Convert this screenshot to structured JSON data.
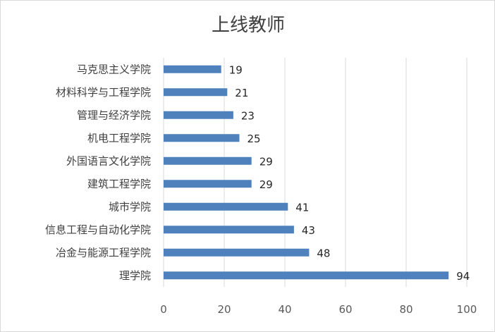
{
  "chart_data": {
    "type": "bar",
    "orientation": "horizontal",
    "title": "上线教师",
    "xlabel": "",
    "ylabel": "",
    "categories": [
      "马克思主义学院",
      "材料科学与工程学院",
      "管理与经济学院",
      "机电工程学院",
      "外国语言文化学院",
      "建筑工程学院",
      "城市学院",
      "信息工程与自动化学院",
      "冶金与能源工程学院",
      "理学院"
    ],
    "values": [
      19,
      21,
      23,
      25,
      29,
      29,
      41,
      43,
      48,
      94
    ],
    "xlim": [
      0,
      100
    ],
    "xticks": [
      0,
      20,
      40,
      60,
      80,
      100
    ],
    "grid": true,
    "legend": "none",
    "bar_color": "#4f81bd",
    "grid_color": "#d9d9d9"
  }
}
